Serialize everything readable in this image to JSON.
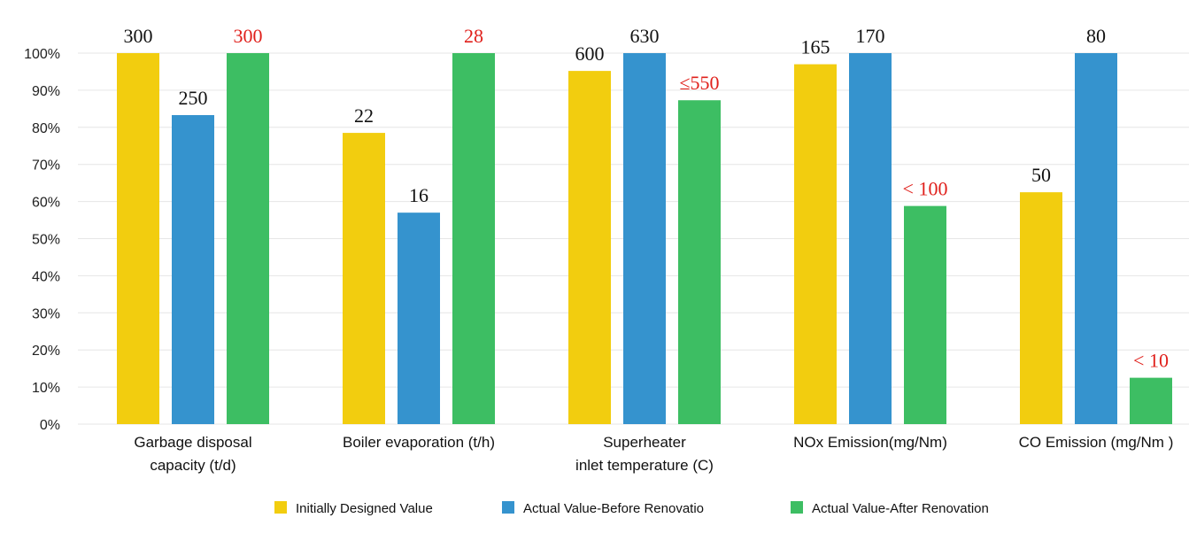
{
  "chart_data": {
    "type": "bar",
    "y_tick_labels": [
      "0%",
      "10%",
      "20%",
      "30%",
      "40%",
      "50%",
      "60%",
      "70%",
      "80%",
      "90%",
      "100%"
    ],
    "ylim": [
      0,
      100
    ],
    "y_unit": "%",
    "grid": true,
    "legend_placement": "bottom",
    "categories": [
      [
        "Garbage disposal",
        "capacity  (t/d)"
      ],
      [
        "Boiler evaporation (t/h)"
      ],
      [
        "Superheater",
        "inlet temperature (C)"
      ],
      [
        "NOx Emission(mg/Nm)"
      ],
      [
        "CO  Emission (mg/Nm )"
      ]
    ],
    "series": [
      {
        "name": "Initially Designed Value",
        "color": "#F2CD0F",
        "values": [
          100,
          78.5,
          95.2,
          97,
          62.5
        ],
        "labels": [
          "300",
          "22",
          "600",
          "165",
          "50"
        ],
        "label_color": "#111111"
      },
      {
        "name": "Actual Value-Before Renovatio",
        "color": "#3593CE",
        "values": [
          83.3,
          57,
          100,
          100,
          100
        ],
        "labels": [
          "250",
          "16",
          "630",
          "170",
          "80"
        ],
        "label_color": "#111111"
      },
      {
        "name": "Actual Value-After Renovation",
        "color": "#3DBE63",
        "values": [
          100,
          100,
          87.3,
          58.8,
          12.5
        ],
        "labels": [
          "300",
          "28",
          "≤550",
          "< 100",
          "< 10"
        ],
        "label_color": "#E0201B"
      }
    ]
  }
}
